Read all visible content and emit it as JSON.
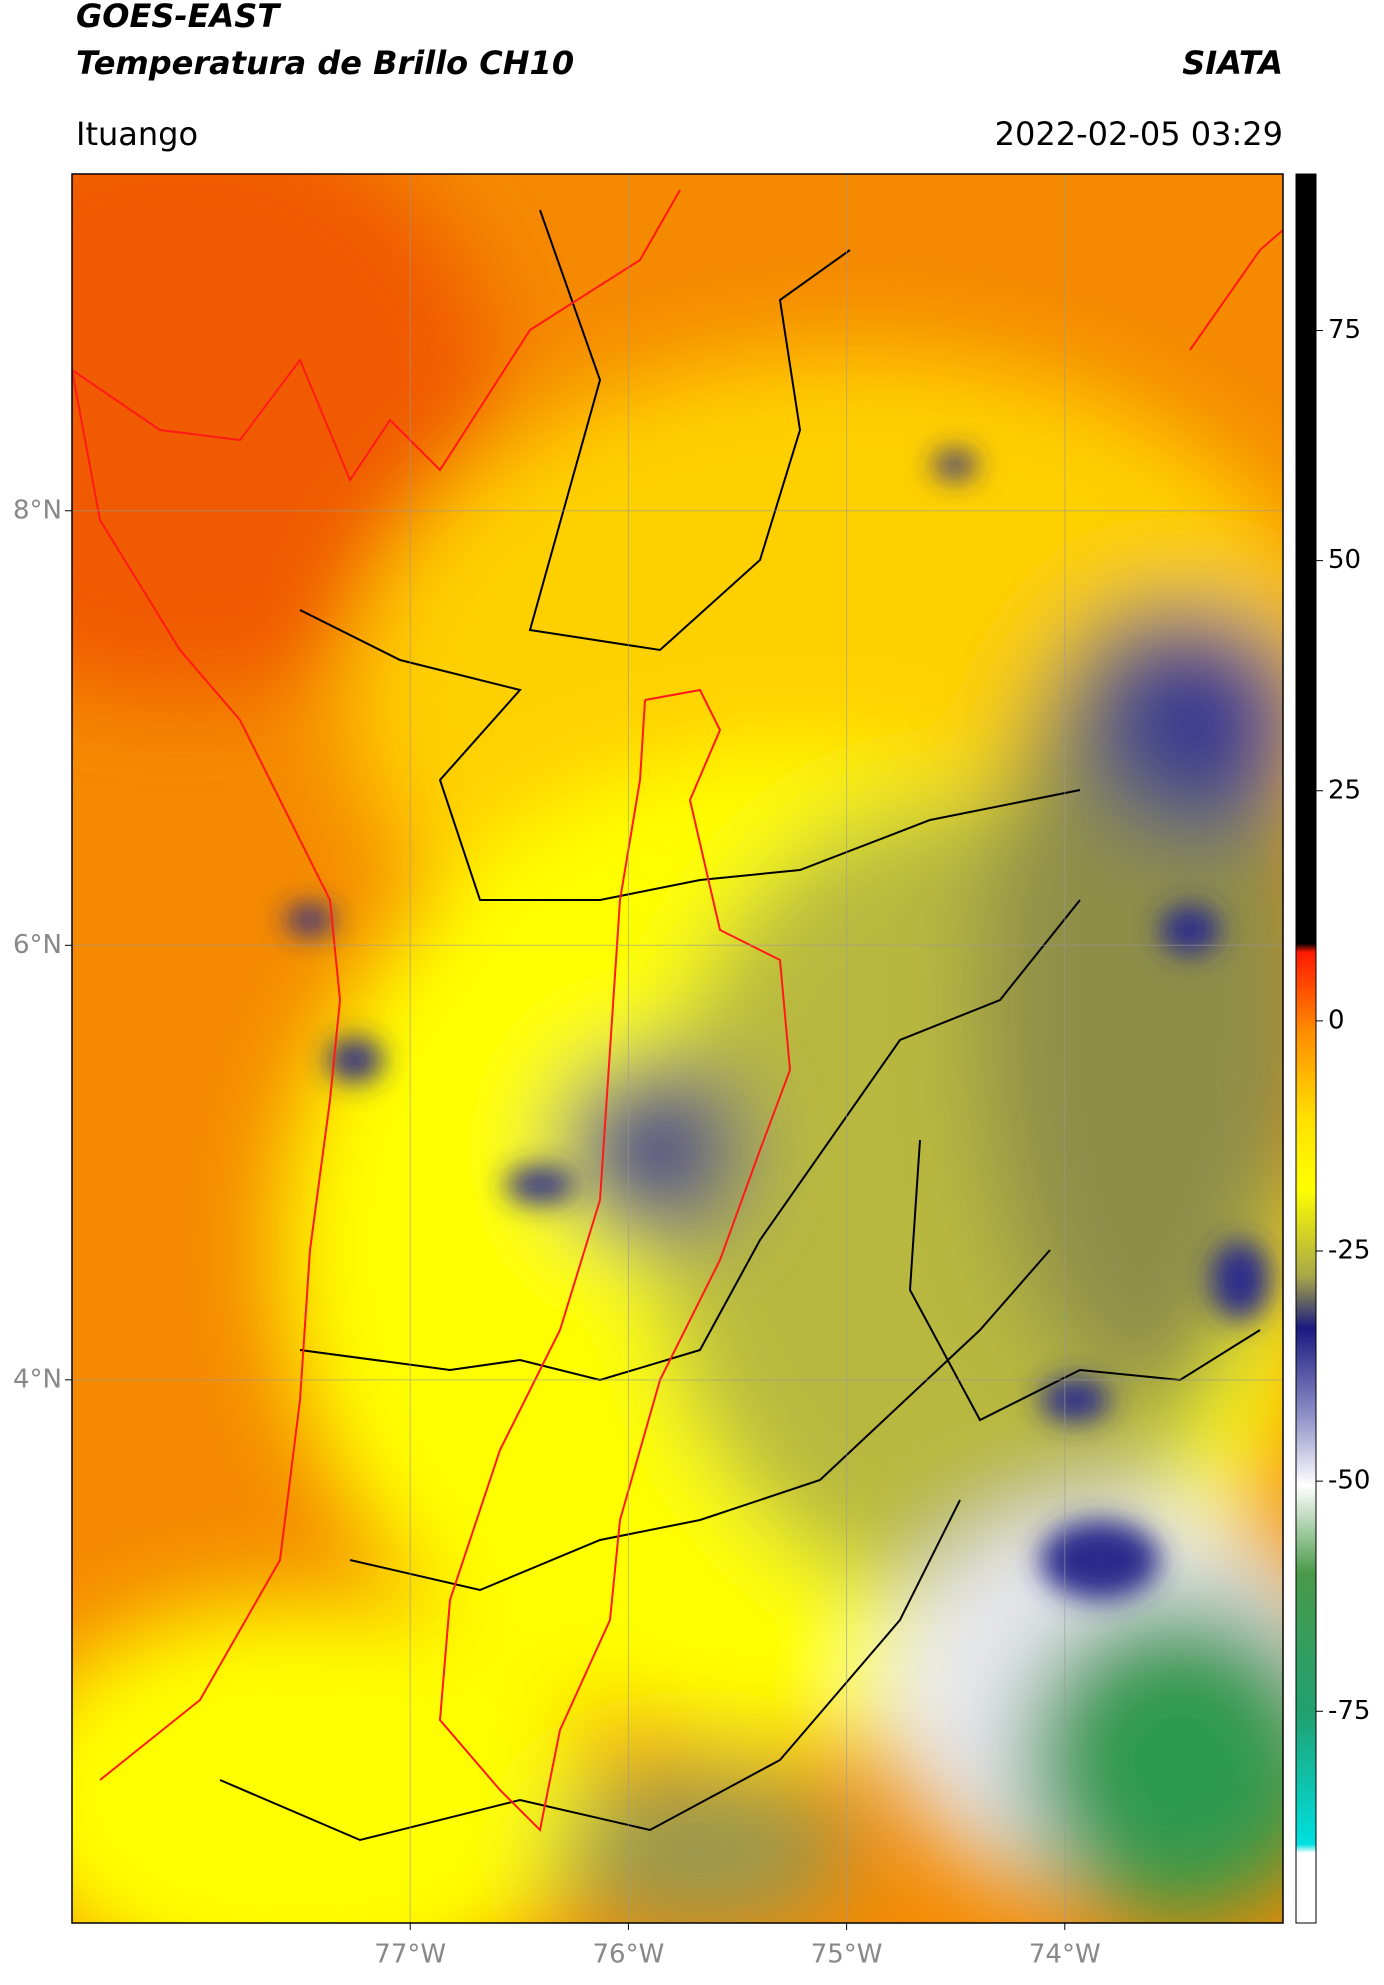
{
  "header": {
    "title": "GOES-EAST",
    "subtitle": "Temperatura de Brillo CH10",
    "organization": "SIATA",
    "location": "Ituango",
    "datetime": "2022-02-05 03:29"
  },
  "map": {
    "xlim": [
      -78.55,
      -73.0
    ],
    "ylim": [
      1.5,
      9.55
    ],
    "xticks": [
      {
        "value": -77,
        "label": "77°W"
      },
      {
        "value": -76,
        "label": "76°W"
      },
      {
        "value": -75,
        "label": "75°W"
      },
      {
        "value": -74,
        "label": "74°W"
      }
    ],
    "yticks": [
      {
        "value": 8,
        "label": "8°N"
      },
      {
        "value": 6,
        "label": "6°N"
      },
      {
        "value": 4,
        "label": "4°N"
      }
    ],
    "grid": true
  },
  "colorbar": {
    "lim": [
      -98,
      92
    ],
    "ticks": [
      75,
      50,
      25,
      0,
      -25,
      -50,
      -75
    ]
  }
}
